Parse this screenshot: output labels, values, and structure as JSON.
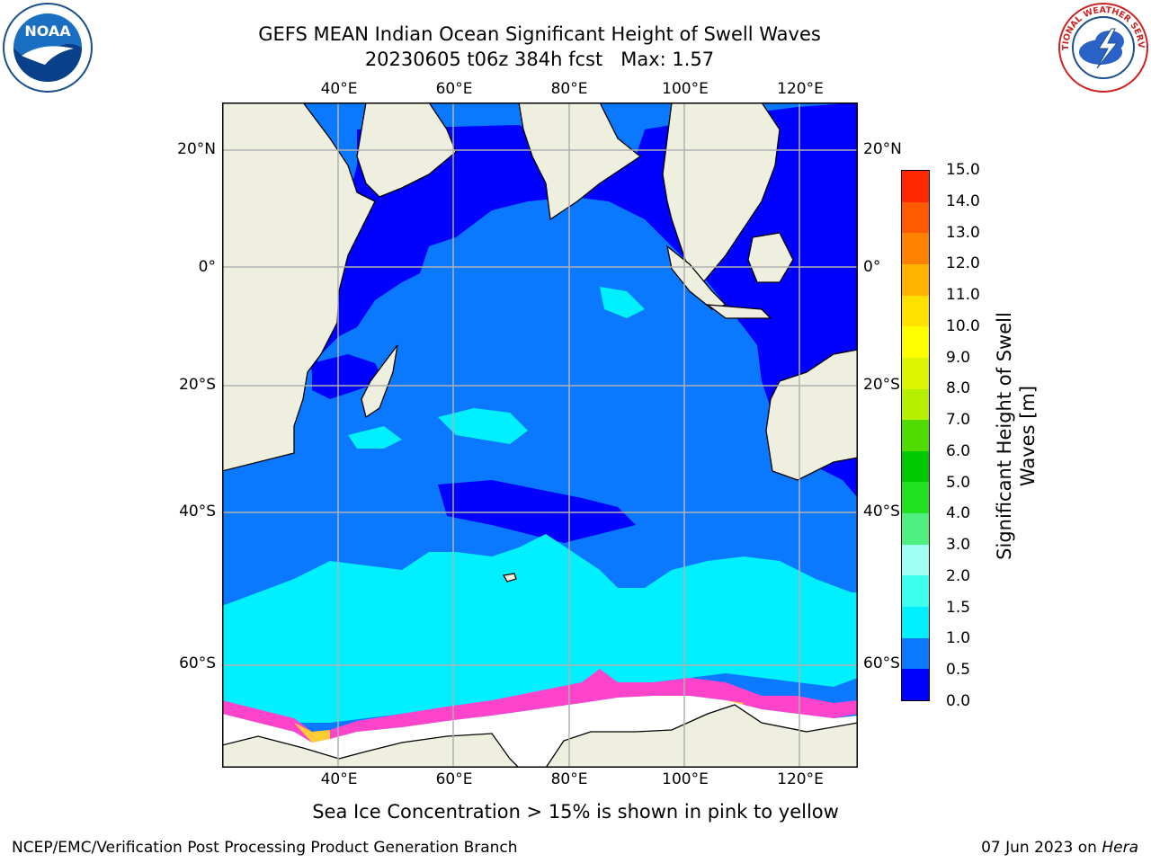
{
  "title_line1": "GEFS MEAN Indian Ocean Significant Height of Swell Waves",
  "title_line2": "20230605 t06z 384h fcst   Max: 1.57",
  "logos": {
    "left": {
      "name": "noaa-logo",
      "text": "NOAA"
    },
    "right": {
      "name": "nws-logo",
      "text": "NATIONAL WEATHER SERVICE"
    }
  },
  "map": {
    "projection": "plate-carree",
    "lon_range": [
      20,
      130
    ],
    "lat_range": [
      -72,
      28
    ],
    "x_ticks": [
      {
        "lon": 40,
        "label": "40°E"
      },
      {
        "lon": 60,
        "label": "60°E"
      },
      {
        "lon": 80,
        "label": "80°E"
      },
      {
        "lon": 100,
        "label": "100°E"
      },
      {
        "lon": 120,
        "label": "120°E"
      }
    ],
    "y_ticks": [
      {
        "lat": 20,
        "label": "20°N"
      },
      {
        "lat": 0,
        "label": "0°"
      },
      {
        "lat": -20,
        "label": "20°S"
      },
      {
        "lat": -40,
        "label": "40°S"
      },
      {
        "lat": -60,
        "label": "60°S"
      }
    ],
    "land_color": "#efefdf",
    "gridlines": true,
    "sea_ice_color": "#ffffff"
  },
  "colorbar": {
    "label": "Significant Height of Swell Waves [m]",
    "label_line1": "Significant Height of Swell",
    "label_line2": "Waves [m]",
    "ticks": [
      "0.0",
      "0.5",
      "1.0",
      "1.5",
      "2.0",
      "3.0",
      "4.0",
      "5.0",
      "6.0",
      "7.0",
      "8.0",
      "9.0",
      "10.0",
      "11.0",
      "12.0",
      "13.0",
      "14.0",
      "15.0"
    ],
    "colors": [
      "#0000ff",
      "#0a78ff",
      "#00f0ff",
      "#3cfff0",
      "#a0fff5",
      "#50f080",
      "#20e020",
      "#00c800",
      "#50dc00",
      "#b4f000",
      "#dcf500",
      "#ffff00",
      "#ffe100",
      "#ffb400",
      "#ff8200",
      "#ff5a00",
      "#ff2800",
      "#ff0000"
    ]
  },
  "caption": "Sea Ice Concentration > 15% is shown in pink to yellow",
  "footer": {
    "left": "NCEP/EMC/Verification Post Processing Product Generation Branch",
    "right_prefix": "07 Jun 2023 on ",
    "right_host": "Hera"
  }
}
